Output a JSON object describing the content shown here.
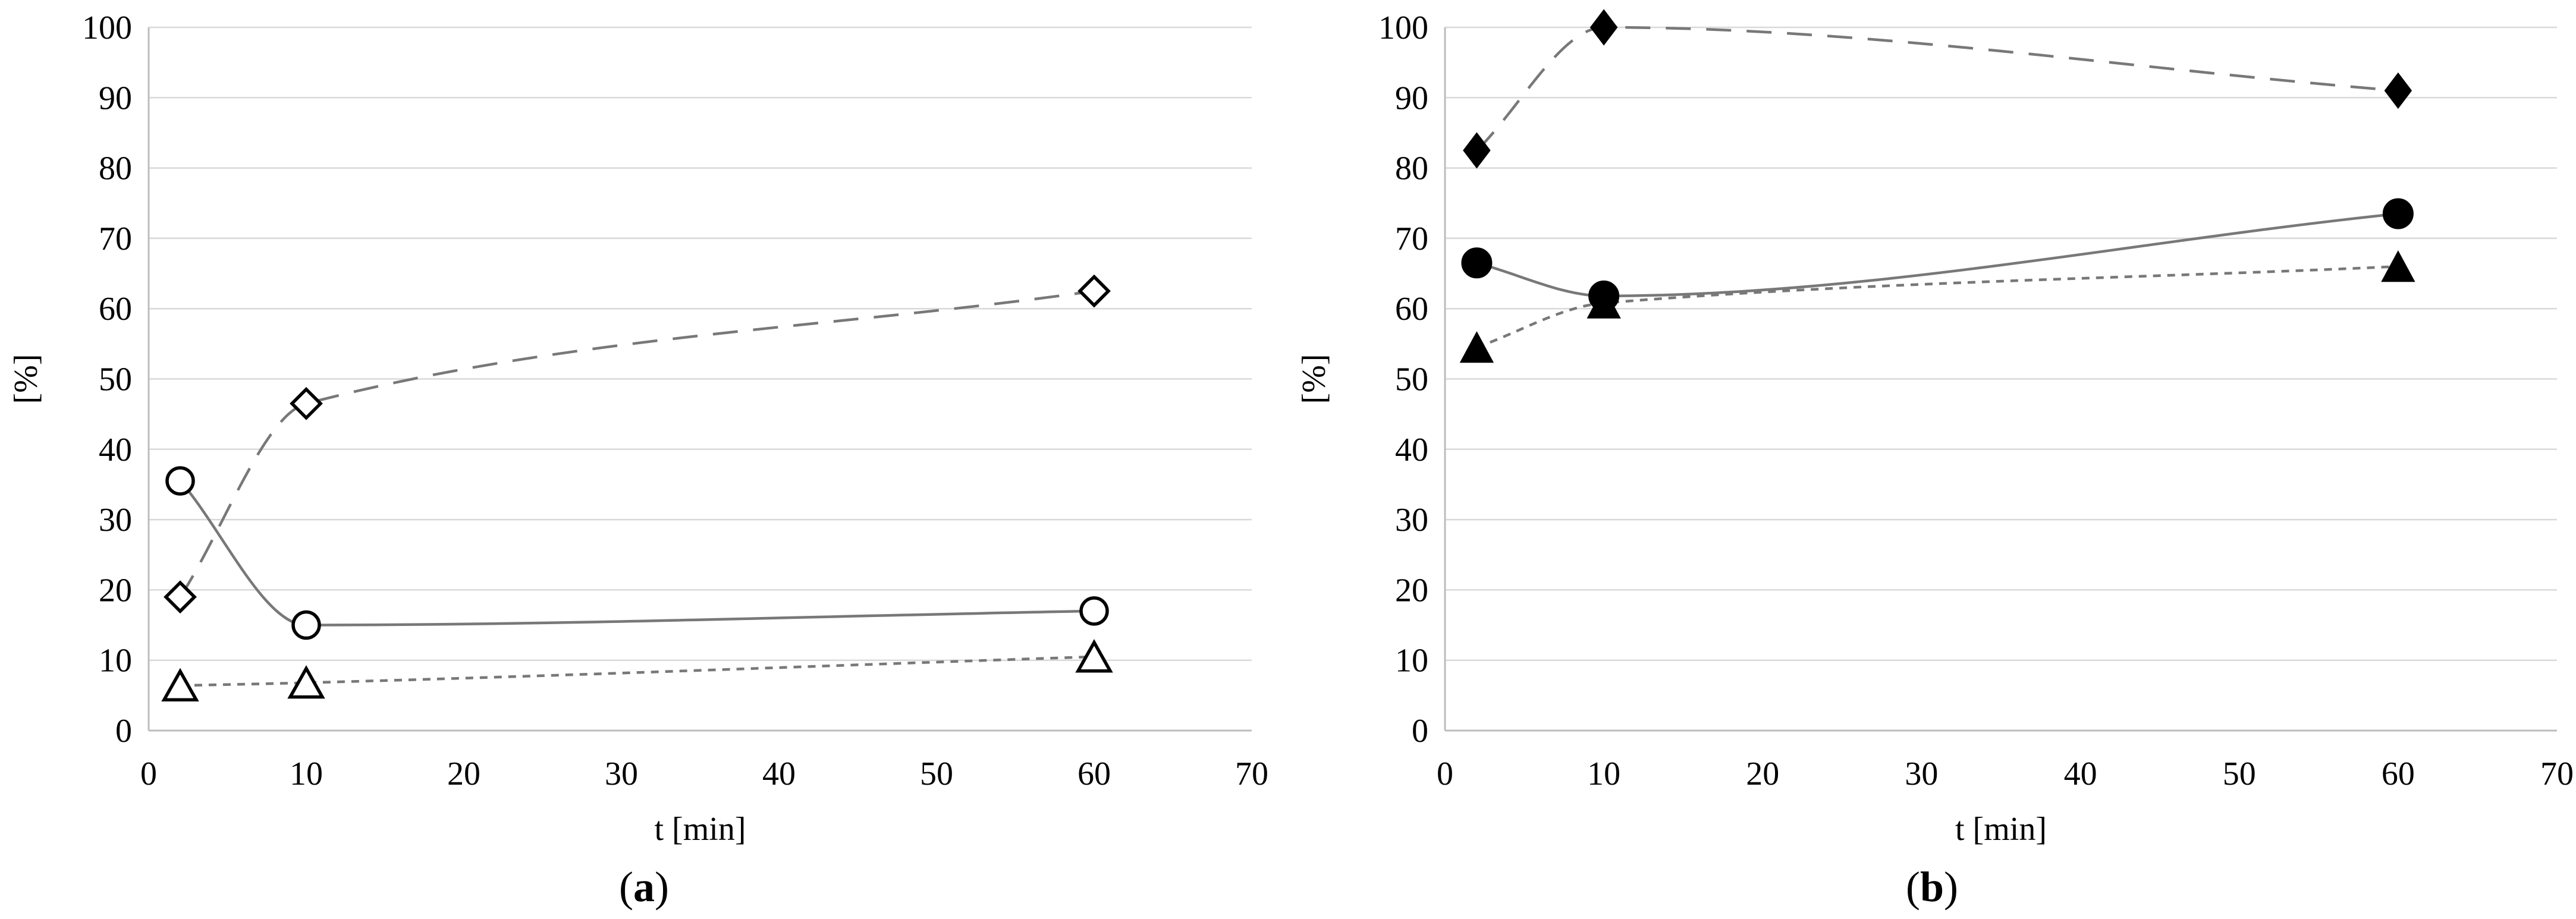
{
  "page": {
    "background": "#ffffff"
  },
  "colors": {
    "line": "#787878",
    "grid": "#d9d9d9",
    "axis": "#bdbdbd",
    "marker": "#000000",
    "open_fill": "#ffffff"
  },
  "chart_data": [
    {
      "id": "a",
      "type": "line",
      "caption": {
        "prefix": "(",
        "letter": "a",
        "suffix": ")"
      },
      "xlabel": "t [min]",
      "ylabel": "[%]",
      "xlim": [
        0,
        70
      ],
      "ylim": [
        0,
        100
      ],
      "x_ticks": [
        0,
        10,
        20,
        30,
        40,
        50,
        60,
        70
      ],
      "y_ticks": [
        0,
        10,
        20,
        30,
        40,
        50,
        60,
        70,
        80,
        90,
        100
      ],
      "grid": "horizontal",
      "legend": "none",
      "x": [
        2,
        10,
        60
      ],
      "series": [
        {
          "name": "diamond-dashed",
          "marker": "diamond",
          "fill_mode": "open",
          "line_style": "long-dash",
          "values": [
            19,
            46.5,
            62.5
          ]
        },
        {
          "name": "circle-solid",
          "marker": "circle",
          "fill_mode": "open",
          "line_style": "solid",
          "values": [
            35.5,
            15,
            17
          ]
        },
        {
          "name": "triangle-dotted",
          "marker": "triangle",
          "fill_mode": "open",
          "line_style": "short-dash",
          "values": [
            6.4,
            6.8,
            10.5
          ]
        }
      ]
    },
    {
      "id": "b",
      "type": "line",
      "caption": {
        "prefix": "(",
        "letter": "b",
        "suffix": ")"
      },
      "xlabel": "t [min]",
      "ylabel": "[%]",
      "xlim": [
        0,
        70
      ],
      "ylim": [
        0,
        100
      ],
      "x_ticks": [
        0,
        10,
        20,
        30,
        40,
        50,
        60,
        70
      ],
      "y_ticks": [
        0,
        10,
        20,
        30,
        40,
        50,
        60,
        70,
        80,
        90,
        100
      ],
      "grid": "horizontal",
      "legend": "none",
      "x": [
        2,
        10,
        60
      ],
      "series": [
        {
          "name": "diamond-dashed",
          "marker": "diamond",
          "fill_mode": "filled",
          "line_style": "long-dash",
          "values": [
            82.5,
            100,
            91
          ]
        },
        {
          "name": "circle-solid",
          "marker": "circle",
          "fill_mode": "filled",
          "line_style": "solid",
          "values": [
            66.5,
            61.8,
            73.5
          ]
        },
        {
          "name": "triangle-dotted",
          "marker": "triangle",
          "fill_mode": "filled",
          "line_style": "short-dash",
          "values": [
            54.5,
            60.8,
            66
          ]
        }
      ]
    }
  ]
}
